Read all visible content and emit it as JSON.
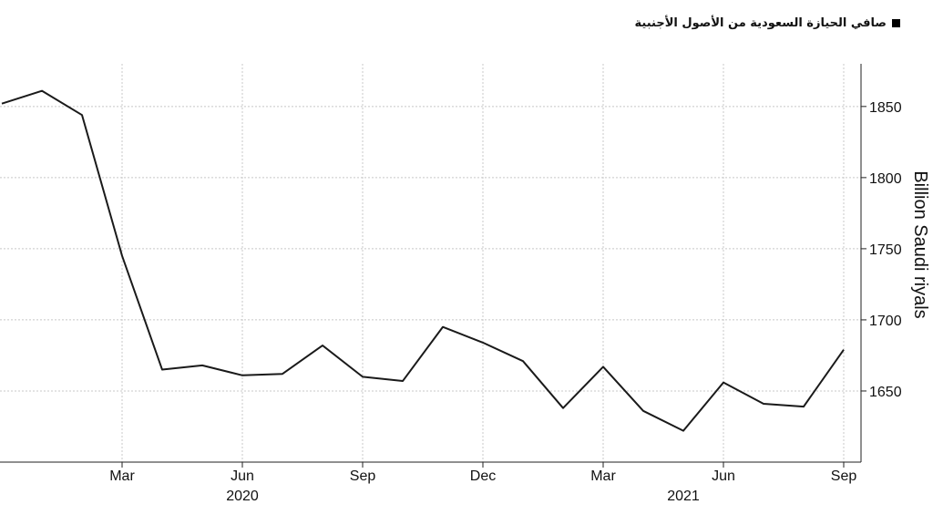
{
  "legend": {
    "label": "صافي الحيازة السعودية من الأصول الأجنبية"
  },
  "chart_data": {
    "type": "line",
    "title": "",
    "xlabel": "",
    "ylabel": "Billion Saudi riyals",
    "ylim": [
      1600,
      1880
    ],
    "yticks": [
      1650,
      1700,
      1750,
      1800,
      1850
    ],
    "x_month_ticks": [
      {
        "label": "Mar",
        "index": 3
      },
      {
        "label": "Jun",
        "index": 6
      },
      {
        "label": "Sep",
        "index": 9
      },
      {
        "label": "Dec",
        "index": 12
      },
      {
        "label": "Mar",
        "index": 15
      },
      {
        "label": "Jun",
        "index": 18
      },
      {
        "label": "Sep",
        "index": 21
      }
    ],
    "x_year_labels": [
      {
        "label": "2020",
        "index": 6
      },
      {
        "label": "2021",
        "index": 17
      }
    ],
    "series": [
      {
        "values": [
          1852,
          1861,
          1844,
          1745,
          1665,
          1668,
          1661,
          1662,
          1682,
          1660,
          1657,
          1695,
          1684,
          1671,
          1638,
          1667,
          1636,
          1622,
          1656,
          1641,
          1639,
          1679
        ],
        "color": "#1a1a1a"
      }
    ],
    "grid": true,
    "y_axis_side": "right"
  }
}
